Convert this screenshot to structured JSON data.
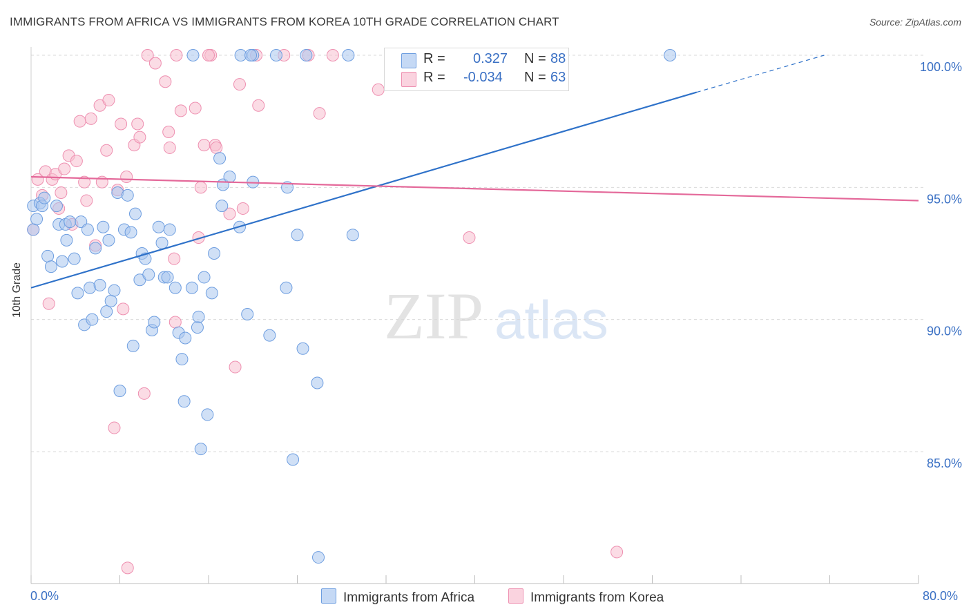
{
  "title": "IMMIGRANTS FROM AFRICA VS IMMIGRANTS FROM KOREA 10TH GRADE CORRELATION CHART",
  "source": "Source: ZipAtlas.com",
  "watermark": {
    "zip": "ZIP",
    "atlas": "atlas"
  },
  "legend": {
    "africa": {
      "r_label": "R =",
      "r_value": "0.327",
      "n_label": "N =",
      "n_value": "88"
    },
    "korea": {
      "r_label": "R =",
      "r_value": "-0.034",
      "n_label": "N =",
      "n_value": "63"
    }
  },
  "bottom_legend": {
    "africa": "Immigrants from Africa",
    "korea": "Immigrants from Korea"
  },
  "colors": {
    "africa_fill": "#a9c6ef",
    "africa_stroke": "#6e9ee0",
    "africa_line": "#2f72c9",
    "korea_fill": "#f7bfd0",
    "korea_stroke": "#ee8fb0",
    "korea_line": "#e4699a",
    "tick_text": "#3a70c4",
    "grid": "#d9d9d9"
  },
  "chart_data": {
    "type": "scatter",
    "title": "IMMIGRANTS FROM AFRICA VS IMMIGRANTS FROM KOREA 10TH GRADE CORRELATION CHART",
    "xlabel": "",
    "ylabel": "10th Grade",
    "xlim": [
      0,
      80
    ],
    "ylim": [
      80.2,
      100.7
    ],
    "x_tick_labels": [
      "0.0%",
      "80.0%"
    ],
    "y_ticks": [
      85,
      90,
      95,
      100
    ],
    "y_tick_labels": [
      "85.0%",
      "90.0%",
      "95.0%",
      "100.0%"
    ],
    "grid": "horizontal dashed",
    "legend_placement": "top-center",
    "series": [
      {
        "name": "Immigrants from Africa",
        "trend": {
          "x0": 0,
          "y0": 91.2,
          "x1": 60,
          "y1": 98.6,
          "dashed_to_x": 71.5,
          "dashed_to_y": 100
        },
        "points": [
          [
            0.2,
            94.3
          ],
          [
            0.2,
            93.4
          ],
          [
            0.5,
            93.8
          ],
          [
            0.8,
            94.4
          ],
          [
            1.0,
            94.3
          ],
          [
            1.2,
            94.6
          ],
          [
            1.5,
            92.4
          ],
          [
            1.8,
            92.0
          ],
          [
            2.3,
            94.3
          ],
          [
            2.5,
            93.6
          ],
          [
            2.8,
            92.2
          ],
          [
            3.1,
            93.6
          ],
          [
            3.2,
            93.0
          ],
          [
            3.5,
            93.7
          ],
          [
            3.9,
            92.3
          ],
          [
            4.2,
            91.0
          ],
          [
            4.5,
            93.7
          ],
          [
            4.8,
            89.8
          ],
          [
            5.1,
            93.4
          ],
          [
            5.3,
            91.2
          ],
          [
            5.5,
            90.0
          ],
          [
            5.8,
            92.7
          ],
          [
            6.2,
            91.3
          ],
          [
            6.5,
            93.5
          ],
          [
            6.8,
            90.3
          ],
          [
            7.0,
            93.0
          ],
          [
            7.2,
            90.7
          ],
          [
            7.5,
            91.1
          ],
          [
            7.8,
            94.8
          ],
          [
            8.0,
            87.3
          ],
          [
            8.4,
            93.4
          ],
          [
            8.7,
            94.7
          ],
          [
            9.0,
            93.3
          ],
          [
            9.2,
            89.0
          ],
          [
            9.4,
            94.0
          ],
          [
            9.8,
            91.5
          ],
          [
            10.0,
            92.5
          ],
          [
            10.3,
            92.3
          ],
          [
            10.6,
            91.7
          ],
          [
            10.9,
            89.6
          ],
          [
            11.1,
            89.9
          ],
          [
            11.5,
            93.5
          ],
          [
            11.8,
            92.9
          ],
          [
            12.0,
            91.6
          ],
          [
            12.3,
            91.6
          ],
          [
            12.5,
            93.4
          ],
          [
            13.0,
            91.2
          ],
          [
            13.3,
            89.5
          ],
          [
            13.6,
            88.5
          ],
          [
            13.8,
            86.9
          ],
          [
            13.9,
            89.3
          ],
          [
            14.5,
            91.2
          ],
          [
            15.0,
            89.7
          ],
          [
            15.1,
            90.1
          ],
          [
            15.3,
            85.1
          ],
          [
            15.6,
            91.6
          ],
          [
            15.9,
            86.4
          ],
          [
            16.3,
            91.0
          ],
          [
            16.5,
            92.5
          ],
          [
            17.0,
            96.1
          ],
          [
            17.2,
            94.3
          ],
          [
            17.3,
            95.1
          ],
          [
            17.9,
            95.4
          ],
          [
            18.8,
            93.5
          ],
          [
            19.5,
            90.2
          ],
          [
            20.0,
            95.2
          ],
          [
            21.5,
            89.4
          ],
          [
            23.0,
            91.2
          ],
          [
            23.1,
            95.0
          ],
          [
            23.6,
            84.7
          ],
          [
            24.0,
            93.2
          ],
          [
            24.5,
            88.9
          ],
          [
            25.8,
            87.6
          ],
          [
            25.9,
            81.0
          ],
          [
            29.0,
            93.2
          ],
          [
            14.6,
            100
          ],
          [
            18.9,
            100
          ],
          [
            20.0,
            100
          ],
          [
            22.1,
            100
          ],
          [
            24.8,
            100
          ],
          [
            28.6,
            100
          ],
          [
            34.5,
            100
          ],
          [
            33.8,
            100
          ],
          [
            57.6,
            100
          ],
          [
            34.2,
            100
          ],
          [
            35.8,
            100
          ],
          [
            33.7,
            100
          ],
          [
            19.8,
            100
          ]
        ]
      },
      {
        "name": "Immigrants from Korea",
        "trend": {
          "x0": 0,
          "y0": 95.4,
          "x1": 80,
          "y1": 94.5
        },
        "points": [
          [
            0.2,
            93.4
          ],
          [
            0.6,
            95.3
          ],
          [
            1.0,
            94.7
          ],
          [
            1.3,
            95.6
          ],
          [
            1.6,
            90.6
          ],
          [
            1.9,
            95.3
          ],
          [
            2.2,
            95.5
          ],
          [
            2.5,
            94.2
          ],
          [
            2.7,
            94.8
          ],
          [
            3.0,
            95.7
          ],
          [
            3.4,
            96.2
          ],
          [
            3.7,
            93.6
          ],
          [
            4.1,
            96.0
          ],
          [
            4.4,
            97.5
          ],
          [
            4.8,
            95.2
          ],
          [
            5.0,
            94.5
          ],
          [
            5.4,
            97.6
          ],
          [
            5.8,
            92.8
          ],
          [
            6.2,
            98.1
          ],
          [
            6.4,
            95.2
          ],
          [
            6.8,
            96.4
          ],
          [
            7.0,
            98.3
          ],
          [
            7.8,
            94.9
          ],
          [
            8.1,
            97.4
          ],
          [
            8.3,
            90.4
          ],
          [
            8.6,
            95.4
          ],
          [
            8.7,
            80.6
          ],
          [
            9.3,
            96.6
          ],
          [
            9.6,
            97.4
          ],
          [
            9.8,
            96.9
          ],
          [
            10.2,
            87.2
          ],
          [
            7.5,
            85.9
          ],
          [
            10.5,
            100
          ],
          [
            11.2,
            99.7
          ],
          [
            12.1,
            99.0
          ],
          [
            12.4,
            97.1
          ],
          [
            12.5,
            96.5
          ],
          [
            12.9,
            92.3
          ],
          [
            13.0,
            89.9
          ],
          [
            13.5,
            97.9
          ],
          [
            14.8,
            98.0
          ],
          [
            15.1,
            93.1
          ],
          [
            15.3,
            95.0
          ],
          [
            15.6,
            96.6
          ],
          [
            16.2,
            100
          ],
          [
            16.6,
            96.6
          ],
          [
            16.7,
            96.5
          ],
          [
            17.9,
            94.0
          ],
          [
            18.4,
            88.2
          ],
          [
            18.8,
            98.9
          ],
          [
            19.1,
            94.2
          ],
          [
            20.5,
            98.1
          ],
          [
            22.8,
            100
          ],
          [
            25.0,
            100
          ],
          [
            26.0,
            97.8
          ],
          [
            27.2,
            100
          ],
          [
            31.3,
            98.7
          ],
          [
            35.5,
            100
          ],
          [
            39.5,
            93.1
          ],
          [
            52.8,
            81.2
          ],
          [
            13.1,
            100
          ],
          [
            16.0,
            100
          ],
          [
            20.3,
            100
          ]
        ]
      }
    ]
  }
}
